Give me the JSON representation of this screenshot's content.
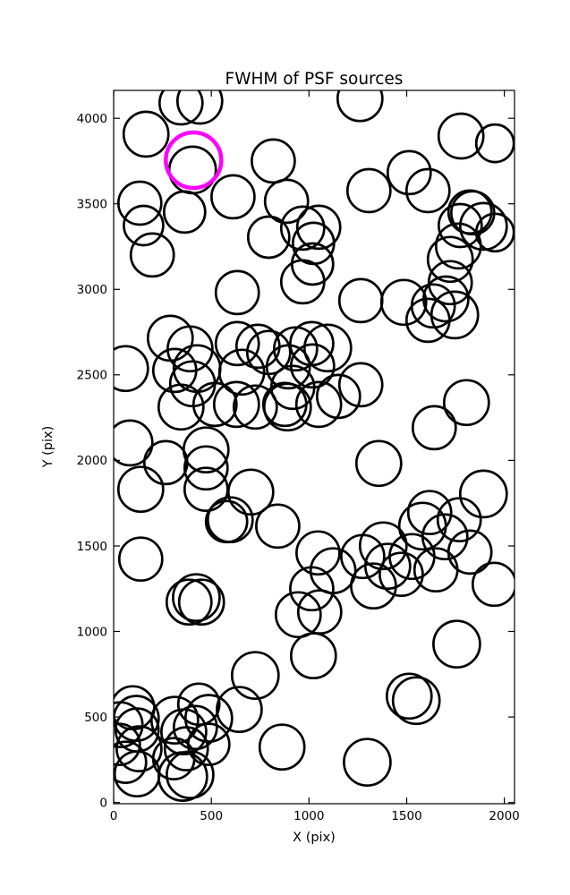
{
  "figure": {
    "background": "#ffffff",
    "colors": {
      "source_outline": "#000000",
      "highlight": "#ff00ff",
      "axes": "#000000",
      "text": "#000000"
    }
  },
  "chart_data": {
    "type": "scatter",
    "title": "FWHM of PSF sources",
    "xlabel": "X (pix)",
    "ylabel": "Y (pix)",
    "xlim": [
      0,
      2052
    ],
    "ylim": [
      -7,
      4163
    ],
    "x_ticks": [
      0,
      500,
      1000,
      1500,
      2000
    ],
    "y_ticks": [
      0,
      500,
      1000,
      1500,
      2000,
      2500,
      3000,
      3500,
      4000
    ],
    "grid": false,
    "legend": "none",
    "marker": "open-circle",
    "marker_color": "#000000",
    "highlight_color": "#ff00ff",
    "points_format": [
      "x_pix",
      "y_pix",
      "radius_screen_px"
    ],
    "points": [
      [
        345,
        4090,
        24
      ],
      [
        441,
        4100,
        25
      ],
      [
        1261,
        4115,
        25
      ],
      [
        166,
        3907,
        25
      ],
      [
        1778,
        3896,
        25
      ],
      [
        1952,
        3854,
        21
      ],
      [
        404,
        3698,
        26
      ],
      [
        817,
        3750,
        24
      ],
      [
        1513,
        3682,
        24
      ],
      [
        1307,
        3577,
        24
      ],
      [
        1609,
        3577,
        24
      ],
      [
        134,
        3504,
        24
      ],
      [
        611,
        3541,
        24
      ],
      [
        363,
        3452,
        23
      ],
      [
        153,
        3373,
        22
      ],
      [
        885,
        3515,
        24
      ],
      [
        1838,
        3447,
        24
      ],
      [
        198,
        3201,
        24
      ],
      [
        794,
        3305,
        23
      ],
      [
        968,
        3358,
        24
      ],
      [
        1050,
        3363,
        24
      ],
      [
        1023,
        3269,
        23
      ],
      [
        1018,
        3148,
        23
      ],
      [
        968,
        3044,
        24
      ],
      [
        1893,
        3368,
        26
      ],
      [
        1824,
        3452,
        24
      ],
      [
        1774,
        3373,
        24
      ],
      [
        1765,
        3253,
        25
      ],
      [
        1723,
        3175,
        25
      ],
      [
        1723,
        3039,
        24
      ],
      [
        633,
        2981,
        24
      ],
      [
        1952,
        3332,
        21
      ],
      [
        1701,
        2944,
        25
      ],
      [
        1636,
        2903,
        24
      ],
      [
        1746,
        2850,
        26
      ],
      [
        1485,
        2924,
        25
      ],
      [
        1265,
        2934,
        24
      ],
      [
        1609,
        2819,
        24
      ],
      [
        290,
        2714,
        25
      ],
      [
        391,
        2652,
        25
      ],
      [
        931,
        2652,
        24
      ],
      [
        1014,
        2683,
        24
      ],
      [
        1096,
        2657,
        26
      ],
      [
        1018,
        2552,
        24
      ],
      [
        633,
        2683,
        24
      ],
      [
        739,
        2667,
        24
      ],
      [
        794,
        2631,
        24
      ],
      [
        894,
        2547,
        24
      ],
      [
        656,
        2516,
        25
      ],
      [
        427,
        2537,
        26
      ],
      [
        313,
        2526,
        24
      ],
      [
        404,
        2448,
        25
      ],
      [
        61,
        2537,
        25
      ],
      [
        917,
        2427,
        24
      ],
      [
        876,
        2327,
        24
      ],
      [
        890,
        2312,
        26
      ],
      [
        1050,
        2327,
        25
      ],
      [
        1265,
        2442,
        24
      ],
      [
        1151,
        2374,
        24
      ],
      [
        345,
        2312,
        25
      ],
      [
        519,
        2327,
        24
      ],
      [
        629,
        2327,
        25
      ],
      [
        725,
        2312,
        24
      ],
      [
        84,
        2102,
        25
      ],
      [
        1806,
        2338,
        25
      ],
      [
        1641,
        2191,
        24
      ],
      [
        267,
        1987,
        24
      ],
      [
        473,
        2061,
        25
      ],
      [
        473,
        1956,
        24
      ],
      [
        139,
        1831,
        25
      ],
      [
        473,
        1831,
        24
      ],
      [
        702,
        1815,
        25
      ],
      [
        1357,
        1982,
        25
      ],
      [
        1893,
        1804,
        26
      ],
      [
        578,
        1642,
        23
      ],
      [
        597,
        1653,
        25
      ],
      [
        840,
        1616,
        24
      ],
      [
        1618,
        1695,
        24
      ],
      [
        1581,
        1616,
        26
      ],
      [
        1696,
        1553,
        25
      ],
      [
        1769,
        1653,
        24
      ],
      [
        139,
        1423,
        24
      ],
      [
        1046,
        1459,
        24
      ],
      [
        1123,
        1355,
        25
      ],
      [
        1275,
        1438,
        24
      ],
      [
        1380,
        1501,
        26
      ],
      [
        1403,
        1381,
        25
      ],
      [
        1472,
        1334,
        24
      ],
      [
        1527,
        1438,
        25
      ],
      [
        1650,
        1360,
        24
      ],
      [
        1824,
        1464,
        24
      ],
      [
        1948,
        1276,
        24
      ],
      [
        1330,
        1266,
        25
      ],
      [
        1014,
        1250,
        24
      ],
      [
        1055,
        1114,
        24
      ],
      [
        386,
        1172,
        25
      ],
      [
        423,
        1198,
        26
      ],
      [
        450,
        1172,
        25
      ],
      [
        945,
        1098,
        25
      ],
      [
        1023,
        858,
        25
      ],
      [
        1756,
        926,
        26
      ],
      [
        725,
        743,
        26
      ],
      [
        643,
        544,
        25
      ],
      [
        436,
        575,
        23
      ],
      [
        1513,
        622,
        25
      ],
      [
        1549,
        596,
        26
      ],
      [
        862,
        324,
        25
      ],
      [
        1298,
        235,
        26
      ],
      [
        98,
        554,
        24
      ],
      [
        116,
        492,
        25
      ],
      [
        33,
        455,
        25
      ],
      [
        120,
        424,
        24
      ],
      [
        29,
        340,
        23
      ],
      [
        130,
        314,
        25
      ],
      [
        61,
        235,
        23
      ],
      [
        120,
        167,
        25
      ],
      [
        313,
        481,
        26
      ],
      [
        359,
        413,
        25
      ],
      [
        372,
        314,
        24
      ],
      [
        308,
        256,
        23
      ],
      [
        418,
        439,
        24
      ],
      [
        487,
        492,
        26
      ],
      [
        487,
        340,
        23
      ],
      [
        354,
        152,
        27
      ],
      [
        391,
        162,
        26
      ]
    ],
    "highlighted_point": [
      409,
      3755,
      31
    ]
  }
}
